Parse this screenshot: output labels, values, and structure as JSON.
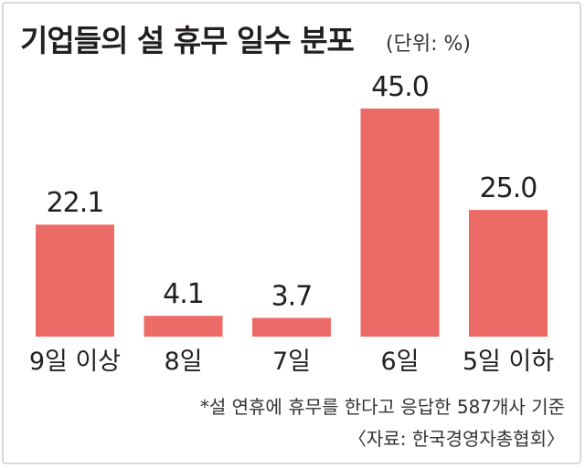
{
  "title": "기업들의 설 휴무 일수 분포",
  "unit_label": "(단위: %)",
  "note": "*설 연휴에 휴무를 한다고 응답한 587개사 기준",
  "source": "〈자료: 한국경영자총협회〉",
  "colors": {
    "bar": "#ed6b67",
    "text": "#231f20"
  },
  "chart_data": {
    "type": "bar",
    "categories": [
      "9일 이상",
      "8일",
      "7일",
      "6일",
      "5일 이하"
    ],
    "values": [
      22.1,
      4.1,
      3.7,
      45.0,
      25.0
    ],
    "value_labels": [
      "22.1",
      "4.1",
      "3.7",
      "45.0",
      "25.0"
    ],
    "ylim": [
      0,
      45.0
    ],
    "grid": false,
    "legend": "none"
  }
}
